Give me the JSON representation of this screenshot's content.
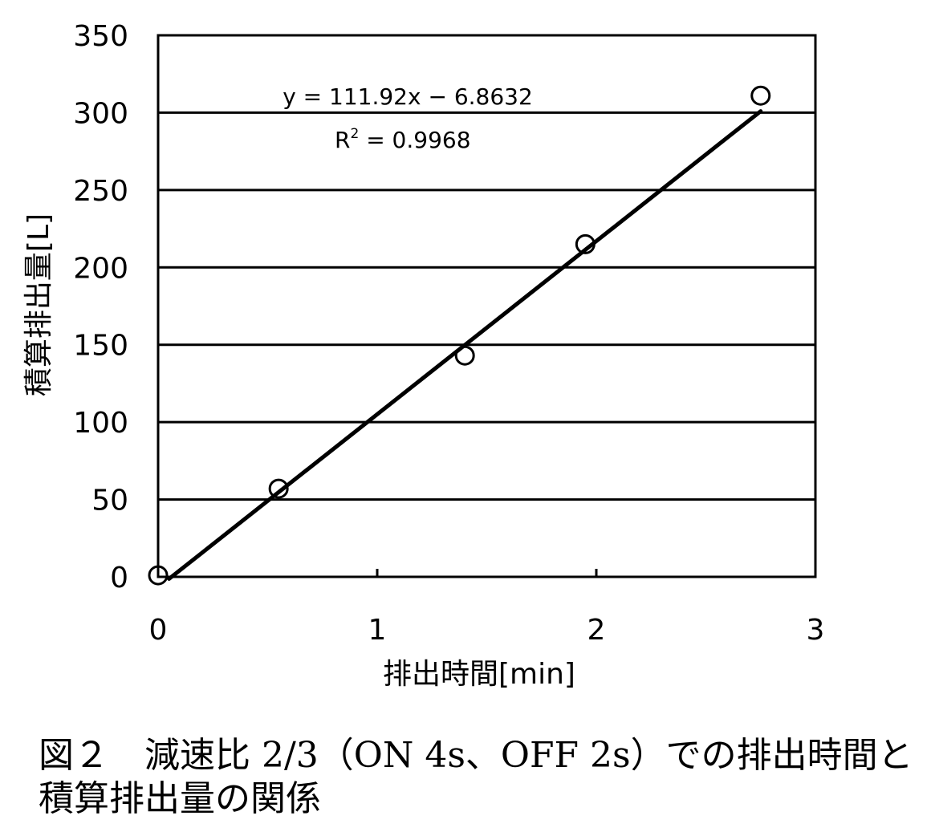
{
  "chart_data": {
    "type": "scatter",
    "xlabel": "排出時間[min]",
    "ylabel": "積算排出量[L]",
    "xlim": [
      0,
      3
    ],
    "ylim": [
      0,
      350
    ],
    "x_ticks": [
      0,
      1,
      2,
      3
    ],
    "y_ticks": [
      0,
      50,
      100,
      150,
      200,
      250,
      300,
      350
    ],
    "grid": "horizontal",
    "series": [
      {
        "marker": "open-circle",
        "x": [
          0,
          0.55,
          1.4,
          1.95,
          2.75
        ],
        "y": [
          1,
          57,
          143,
          215,
          311
        ]
      }
    ],
    "trendline": {
      "type": "linear",
      "slope": 111.92,
      "intercept": -6.8632,
      "x_range": [
        0.05,
        2.75
      ]
    },
    "annotations": {
      "equation": "y = 111.92x − 6.8632",
      "r2_label": "R",
      "r2_sup": "2",
      "r2_value": " = 0.9968"
    }
  },
  "caption": {
    "line1": "図２　減速比 2/3（ON 4s、OFF 2s）での排出時間と",
    "line2": "積算排出量の関係"
  }
}
